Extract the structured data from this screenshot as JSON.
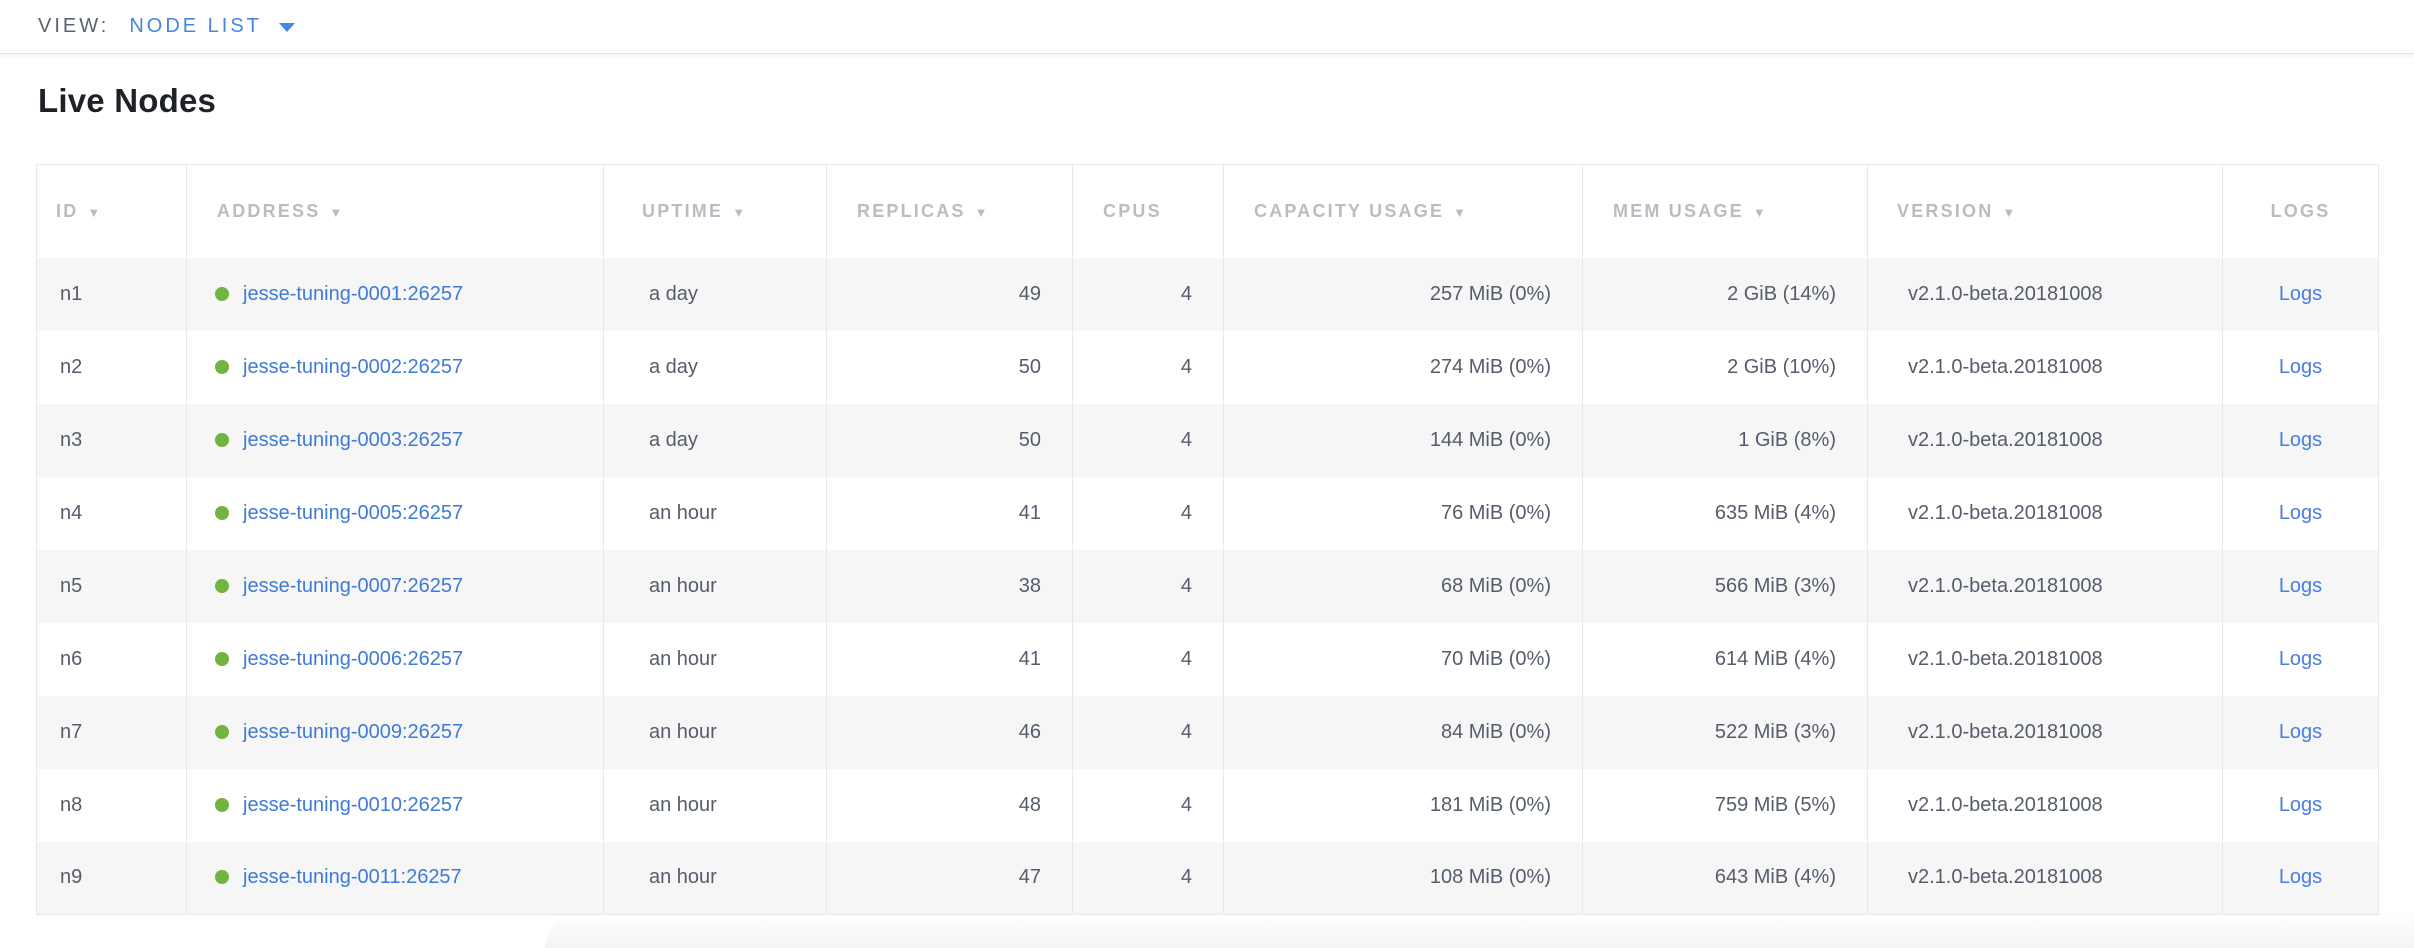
{
  "view_bar": {
    "label": "VIEW:",
    "selected": "NODE LIST"
  },
  "page": {
    "title": "Live Nodes"
  },
  "icons": {
    "sort_indicator": "▼",
    "caret": "caret-down-icon",
    "live_status": "live-status-dot-icon"
  },
  "colors": {
    "accent_blue": "#4585e2",
    "address_link_blue": "#3f7ad6",
    "logs_link_blue": "#4a7de2",
    "live_green": "#72b43e",
    "header_gray": "#b9bcc3",
    "cell_text": "#555c6b",
    "row_stripe": "#f6f6f7"
  },
  "table": {
    "columns": [
      {
        "key": "id",
        "label": "ID",
        "sortable": true
      },
      {
        "key": "address",
        "label": "ADDRESS",
        "sortable": true
      },
      {
        "key": "uptime",
        "label": "UPTIME",
        "sortable": true
      },
      {
        "key": "replicas",
        "label": "REPLICAS",
        "sortable": true
      },
      {
        "key": "cpus",
        "label": "CPUS",
        "sortable": false
      },
      {
        "key": "capacity",
        "label": "CAPACITY USAGE",
        "sortable": true
      },
      {
        "key": "mem",
        "label": "MEM USAGE",
        "sortable": true
      },
      {
        "key": "version",
        "label": "VERSION",
        "sortable": true
      },
      {
        "key": "logs",
        "label": "LOGS",
        "sortable": false
      }
    ],
    "rows": [
      {
        "id": "n1",
        "status": "live",
        "address": "jesse-tuning-0001:26257",
        "uptime": "a day",
        "replicas": "49",
        "cpus": "4",
        "capacity": "257 MiB (0%)",
        "mem": "2 GiB (14%)",
        "version": "v2.1.0-beta.20181008",
        "logs": "Logs"
      },
      {
        "id": "n2",
        "status": "live",
        "address": "jesse-tuning-0002:26257",
        "uptime": "a day",
        "replicas": "50",
        "cpus": "4",
        "capacity": "274 MiB (0%)",
        "mem": "2 GiB (10%)",
        "version": "v2.1.0-beta.20181008",
        "logs": "Logs"
      },
      {
        "id": "n3",
        "status": "live",
        "address": "jesse-tuning-0003:26257",
        "uptime": "a day",
        "replicas": "50",
        "cpus": "4",
        "capacity": "144 MiB (0%)",
        "mem": "1 GiB (8%)",
        "version": "v2.1.0-beta.20181008",
        "logs": "Logs"
      },
      {
        "id": "n4",
        "status": "live",
        "address": "jesse-tuning-0005:26257",
        "uptime": "an hour",
        "replicas": "41",
        "cpus": "4",
        "capacity": "76 MiB (0%)",
        "mem": "635 MiB (4%)",
        "version": "v2.1.0-beta.20181008",
        "logs": "Logs"
      },
      {
        "id": "n5",
        "status": "live",
        "address": "jesse-tuning-0007:26257",
        "uptime": "an hour",
        "replicas": "38",
        "cpus": "4",
        "capacity": "68 MiB (0%)",
        "mem": "566 MiB (3%)",
        "version": "v2.1.0-beta.20181008",
        "logs": "Logs"
      },
      {
        "id": "n6",
        "status": "live",
        "address": "jesse-tuning-0006:26257",
        "uptime": "an hour",
        "replicas": "41",
        "cpus": "4",
        "capacity": "70 MiB (0%)",
        "mem": "614 MiB (4%)",
        "version": "v2.1.0-beta.20181008",
        "logs": "Logs"
      },
      {
        "id": "n7",
        "status": "live",
        "address": "jesse-tuning-0009:26257",
        "uptime": "an hour",
        "replicas": "46",
        "cpus": "4",
        "capacity": "84 MiB (0%)",
        "mem": "522 MiB (3%)",
        "version": "v2.1.0-beta.20181008",
        "logs": "Logs"
      },
      {
        "id": "n8",
        "status": "live",
        "address": "jesse-tuning-0010:26257",
        "uptime": "an hour",
        "replicas": "48",
        "cpus": "4",
        "capacity": "181 MiB (0%)",
        "mem": "759 MiB (5%)",
        "version": "v2.1.0-beta.20181008",
        "logs": "Logs"
      },
      {
        "id": "n9",
        "status": "live",
        "address": "jesse-tuning-0011:26257",
        "uptime": "an hour",
        "replicas": "47",
        "cpus": "4",
        "capacity": "108 MiB (0%)",
        "mem": "643 MiB (4%)",
        "version": "v2.1.0-beta.20181008",
        "logs": "Logs"
      }
    ]
  }
}
